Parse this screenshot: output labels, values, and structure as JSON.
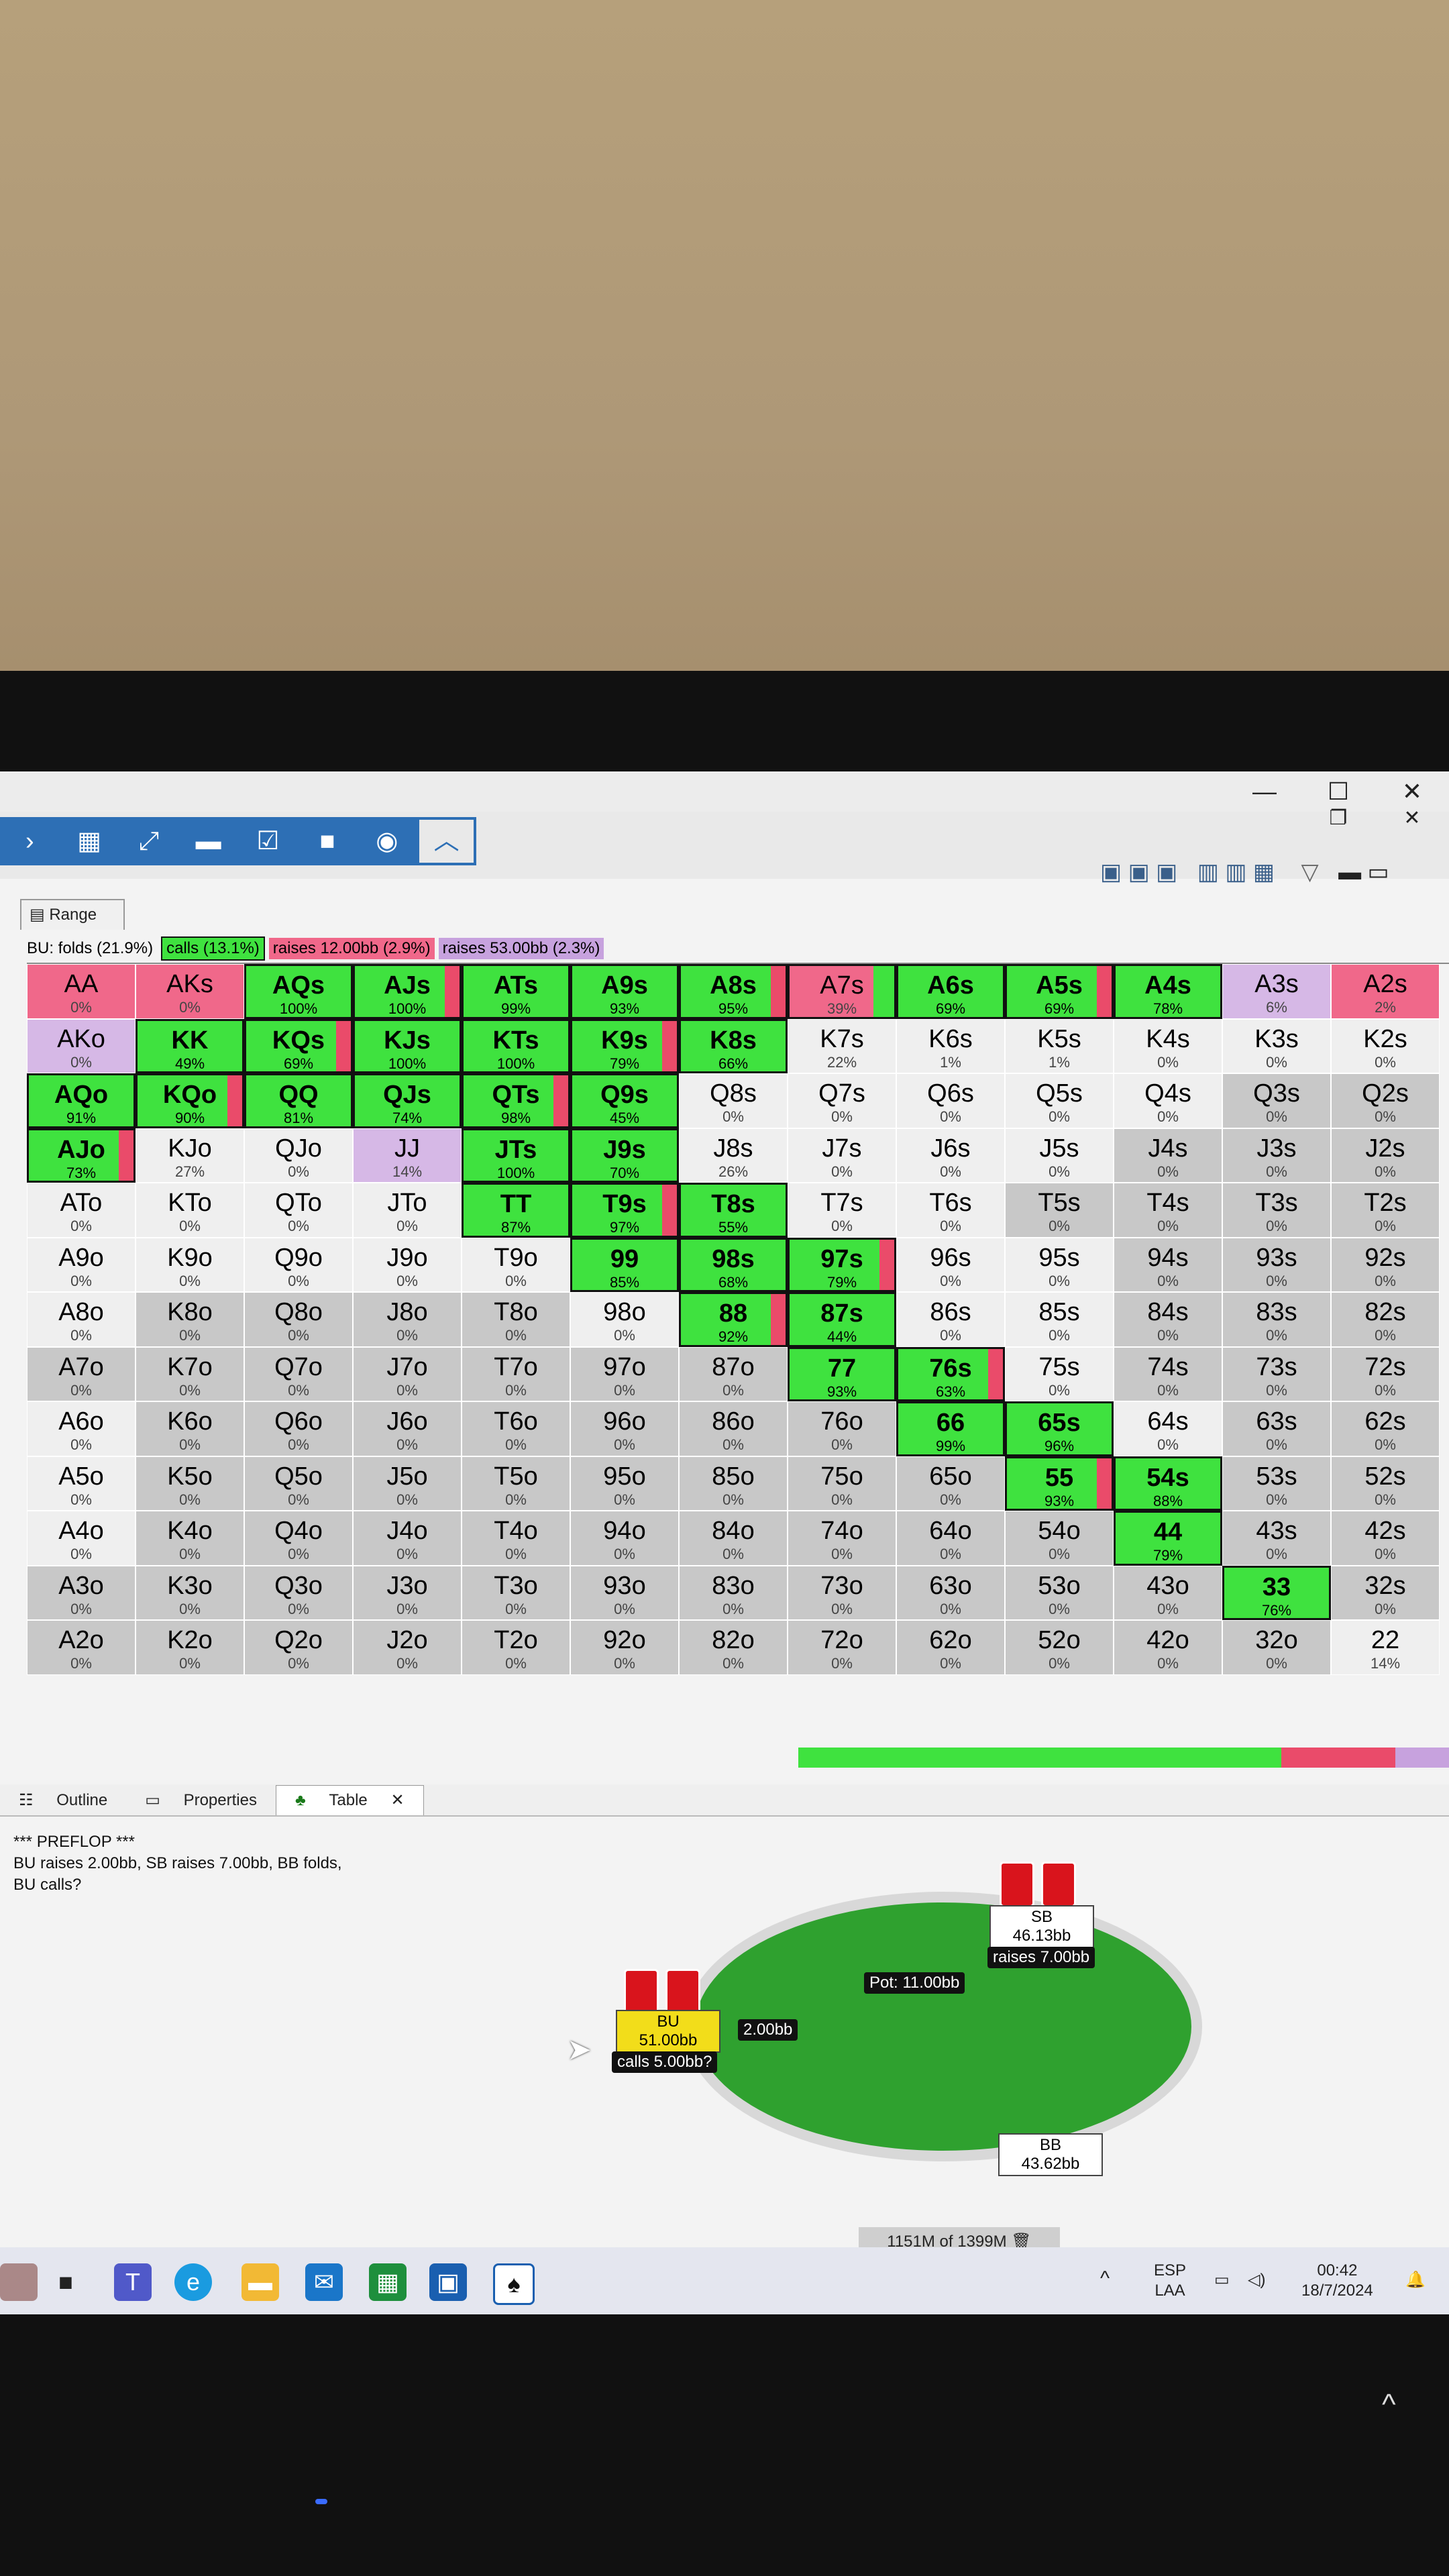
{
  "window": {
    "minimize": "—",
    "maximize": "☐",
    "close": "✕",
    "restore": "❐"
  },
  "toolbar": {
    "icons": [
      "chevron-right-icon",
      "hand-range-icon",
      "expand-icon",
      "comment-icon",
      "chart-check-icon",
      "note-icon",
      "record-icon",
      "collapse-up-icon"
    ]
  },
  "range_tab": {
    "label": "Range"
  },
  "legend": {
    "prefix": "BU: folds (21.9%)",
    "calls": "calls (13.1%)",
    "raise_small": "raises 12.00bb (2.9%)",
    "raise_big": "raises 53.00bb (2.3%)",
    "colors": {
      "calls": "#3fe23f",
      "raise_small": "#f0688a",
      "raise_big": "#c7a2de"
    }
  },
  "grid": [
    [
      [
        "AA",
        "0%",
        "r"
      ],
      [
        "AKs",
        "0%",
        "r"
      ],
      [
        "AQs",
        "100%",
        "gr"
      ],
      [
        "AJs",
        "100%",
        "gr"
      ],
      [
        "ATs",
        "99%",
        "gr"
      ],
      [
        "A9s",
        "93%",
        "gr"
      ],
      [
        "A8s",
        "95%",
        "gr"
      ],
      [
        "A7s",
        "39%",
        "rg"
      ],
      [
        "A6s",
        "69%",
        "gr"
      ],
      [
        "A5s",
        "69%",
        "gr"
      ],
      [
        "A4s",
        "78%",
        "gr"
      ],
      [
        "A3s",
        "6%",
        "p"
      ],
      [
        "A2s",
        "2%",
        "r"
      ]
    ],
    [
      [
        "AKo",
        "0%",
        "p"
      ],
      [
        "KK",
        "49%",
        "gr"
      ],
      [
        "KQs",
        "69%",
        "gr"
      ],
      [
        "KJs",
        "100%",
        "gr"
      ],
      [
        "KTs",
        "100%",
        "gr"
      ],
      [
        "K9s",
        "79%",
        "gr"
      ],
      [
        "K8s",
        "66%",
        "gr"
      ],
      [
        "K7s",
        "22%",
        "w"
      ],
      [
        "K6s",
        "1%",
        "w"
      ],
      [
        "K5s",
        "1%",
        "w"
      ],
      [
        "K4s",
        "0%",
        "w"
      ],
      [
        "K3s",
        "0%",
        "w"
      ],
      [
        "K2s",
        "0%",
        "w"
      ]
    ],
    [
      [
        "AQo",
        "91%",
        "gr"
      ],
      [
        "KQo",
        "90%",
        "gr"
      ],
      [
        "QQ",
        "81%",
        "gr"
      ],
      [
        "QJs",
        "74%",
        "gr"
      ],
      [
        "QTs",
        "98%",
        "gr"
      ],
      [
        "Q9s",
        "45%",
        "gr"
      ],
      [
        "Q8s",
        "0%",
        "w"
      ],
      [
        "Q7s",
        "0%",
        "w"
      ],
      [
        "Q6s",
        "0%",
        "w"
      ],
      [
        "Q5s",
        "0%",
        "w"
      ],
      [
        "Q4s",
        "0%",
        "w"
      ],
      [
        "Q3s",
        "0%",
        "g"
      ],
      [
        "Q2s",
        "0%",
        "g"
      ]
    ],
    [
      [
        "AJo",
        "73%",
        "gr"
      ],
      [
        "KJo",
        "27%",
        "w"
      ],
      [
        "QJo",
        "0%",
        "w"
      ],
      [
        "JJ",
        "14%",
        "p"
      ],
      [
        "JTs",
        "100%",
        "gr"
      ],
      [
        "J9s",
        "70%",
        "gr"
      ],
      [
        "J8s",
        "26%",
        "w"
      ],
      [
        "J7s",
        "0%",
        "w"
      ],
      [
        "J6s",
        "0%",
        "w"
      ],
      [
        "J5s",
        "0%",
        "w"
      ],
      [
        "J4s",
        "0%",
        "g"
      ],
      [
        "J3s",
        "0%",
        "g"
      ],
      [
        "J2s",
        "0%",
        "g"
      ]
    ],
    [
      [
        "ATo",
        "0%",
        "w"
      ],
      [
        "KTo",
        "0%",
        "w"
      ],
      [
        "QTo",
        "0%",
        "w"
      ],
      [
        "JTo",
        "0%",
        "w"
      ],
      [
        "TT",
        "87%",
        "gr"
      ],
      [
        "T9s",
        "97%",
        "gr"
      ],
      [
        "T8s",
        "55%",
        "gr"
      ],
      [
        "T7s",
        "0%",
        "w"
      ],
      [
        "T6s",
        "0%",
        "w"
      ],
      [
        "T5s",
        "0%",
        "g"
      ],
      [
        "T4s",
        "0%",
        "g"
      ],
      [
        "T3s",
        "0%",
        "g"
      ],
      [
        "T2s",
        "0%",
        "g"
      ]
    ],
    [
      [
        "A9o",
        "0%",
        "w"
      ],
      [
        "K9o",
        "0%",
        "w"
      ],
      [
        "Q9o",
        "0%",
        "w"
      ],
      [
        "J9o",
        "0%",
        "w"
      ],
      [
        "T9o",
        "0%",
        "w"
      ],
      [
        "99",
        "85%",
        "gr"
      ],
      [
        "98s",
        "68%",
        "gr"
      ],
      [
        "97s",
        "79%",
        "gr"
      ],
      [
        "96s",
        "0%",
        "w"
      ],
      [
        "95s",
        "0%",
        "w"
      ],
      [
        "94s",
        "0%",
        "g"
      ],
      [
        "93s",
        "0%",
        "g"
      ],
      [
        "92s",
        "0%",
        "g"
      ]
    ],
    [
      [
        "A8o",
        "0%",
        "w"
      ],
      [
        "K8o",
        "0%",
        "g"
      ],
      [
        "Q8o",
        "0%",
        "g"
      ],
      [
        "J8o",
        "0%",
        "g"
      ],
      [
        "T8o",
        "0%",
        "g"
      ],
      [
        "98o",
        "0%",
        "w"
      ],
      [
        "88",
        "92%",
        "gr"
      ],
      [
        "87s",
        "44%",
        "gr"
      ],
      [
        "86s",
        "0%",
        "w"
      ],
      [
        "85s",
        "0%",
        "w"
      ],
      [
        "84s",
        "0%",
        "g"
      ],
      [
        "83s",
        "0%",
        "g"
      ],
      [
        "82s",
        "0%",
        "g"
      ]
    ],
    [
      [
        "A7o",
        "0%",
        "g"
      ],
      [
        "K7o",
        "0%",
        "g"
      ],
      [
        "Q7o",
        "0%",
        "g"
      ],
      [
        "J7o",
        "0%",
        "g"
      ],
      [
        "T7o",
        "0%",
        "g"
      ],
      [
        "97o",
        "0%",
        "g"
      ],
      [
        "87o",
        "0%",
        "g"
      ],
      [
        "77",
        "93%",
        "gr"
      ],
      [
        "76s",
        "63%",
        "gr"
      ],
      [
        "75s",
        "0%",
        "w"
      ],
      [
        "74s",
        "0%",
        "g"
      ],
      [
        "73s",
        "0%",
        "g"
      ],
      [
        "72s",
        "0%",
        "g"
      ]
    ],
    [
      [
        "A6o",
        "0%",
        "w"
      ],
      [
        "K6o",
        "0%",
        "g"
      ],
      [
        "Q6o",
        "0%",
        "g"
      ],
      [
        "J6o",
        "0%",
        "g"
      ],
      [
        "T6o",
        "0%",
        "g"
      ],
      [
        "96o",
        "0%",
        "g"
      ],
      [
        "86o",
        "0%",
        "g"
      ],
      [
        "76o",
        "0%",
        "g"
      ],
      [
        "66",
        "99%",
        "gr"
      ],
      [
        "65s",
        "96%",
        "gr"
      ],
      [
        "64s",
        "0%",
        "w"
      ],
      [
        "63s",
        "0%",
        "g"
      ],
      [
        "62s",
        "0%",
        "g"
      ]
    ],
    [
      [
        "A5o",
        "0%",
        "w"
      ],
      [
        "K5o",
        "0%",
        "g"
      ],
      [
        "Q5o",
        "0%",
        "g"
      ],
      [
        "J5o",
        "0%",
        "g"
      ],
      [
        "T5o",
        "0%",
        "g"
      ],
      [
        "95o",
        "0%",
        "g"
      ],
      [
        "85o",
        "0%",
        "g"
      ],
      [
        "75o",
        "0%",
        "g"
      ],
      [
        "65o",
        "0%",
        "g"
      ],
      [
        "55",
        "93%",
        "gr"
      ],
      [
        "54s",
        "88%",
        "gr"
      ],
      [
        "53s",
        "0%",
        "g"
      ],
      [
        "52s",
        "0%",
        "g"
      ]
    ],
    [
      [
        "A4o",
        "0%",
        "w"
      ],
      [
        "K4o",
        "0%",
        "g"
      ],
      [
        "Q4o",
        "0%",
        "g"
      ],
      [
        "J4o",
        "0%",
        "g"
      ],
      [
        "T4o",
        "0%",
        "g"
      ],
      [
        "94o",
        "0%",
        "g"
      ],
      [
        "84o",
        "0%",
        "g"
      ],
      [
        "74o",
        "0%",
        "g"
      ],
      [
        "64o",
        "0%",
        "g"
      ],
      [
        "54o",
        "0%",
        "g"
      ],
      [
        "44",
        "79%",
        "gr"
      ],
      [
        "43s",
        "0%",
        "g"
      ],
      [
        "42s",
        "0%",
        "g"
      ]
    ],
    [
      [
        "A3o",
        "0%",
        "g"
      ],
      [
        "K3o",
        "0%",
        "g"
      ],
      [
        "Q3o",
        "0%",
        "g"
      ],
      [
        "J3o",
        "0%",
        "g"
      ],
      [
        "T3o",
        "0%",
        "g"
      ],
      [
        "93o",
        "0%",
        "g"
      ],
      [
        "83o",
        "0%",
        "g"
      ],
      [
        "73o",
        "0%",
        "g"
      ],
      [
        "63o",
        "0%",
        "g"
      ],
      [
        "53o",
        "0%",
        "g"
      ],
      [
        "43o",
        "0%",
        "g"
      ],
      [
        "33",
        "76%",
        "gr"
      ],
      [
        "32s",
        "0%",
        "g"
      ]
    ],
    [
      [
        "A2o",
        "0%",
        "g"
      ],
      [
        "K2o",
        "0%",
        "g"
      ],
      [
        "Q2o",
        "0%",
        "g"
      ],
      [
        "J2o",
        "0%",
        "g"
      ],
      [
        "T2o",
        "0%",
        "g"
      ],
      [
        "92o",
        "0%",
        "g"
      ],
      [
        "82o",
        "0%",
        "g"
      ],
      [
        "72o",
        "0%",
        "g"
      ],
      [
        "62o",
        "0%",
        "g"
      ],
      [
        "52o",
        "0%",
        "g"
      ],
      [
        "42o",
        "0%",
        "g"
      ],
      [
        "32o",
        "0%",
        "g"
      ],
      [
        "22",
        "14%",
        "w"
      ]
    ]
  ],
  "tabs": {
    "outline": "Outline",
    "properties": "Properties",
    "table": "Table",
    "close": "✕"
  },
  "history": {
    "line1": "*** PREFLOP ***",
    "line2": "BU raises 2.00bb, SB raises 7.00bb, BB folds,",
    "line3": "BU calls?"
  },
  "table": {
    "pot": "Pot:  11.00bb",
    "bet": "2.00bb",
    "sb": {
      "name": "SB",
      "stack": "46.13bb",
      "action": "raises 7.00bb"
    },
    "bu": {
      "name": "BU",
      "stack": "51.00bb",
      "action": "calls 5.00bb?"
    },
    "bb": {
      "name": "BB",
      "stack": "43.62bb"
    }
  },
  "memory": "1151M of 1399M",
  "taskbar": {
    "lang1": "ESP",
    "lang2": "LAA",
    "time": "00:42",
    "date": "18/7/2024",
    "chevron": "^",
    "chevron_big": "^"
  }
}
